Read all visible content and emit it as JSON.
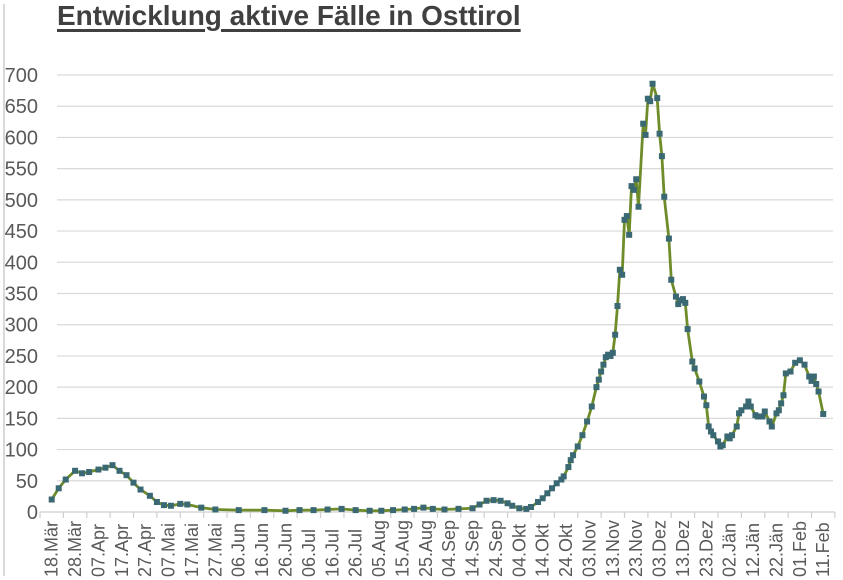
{
  "chart_data": {
    "type": "line",
    "title": "Entwicklung aktive Fälle in Osttirol",
    "subtitle": "",
    "xlabel": "",
    "ylabel": "",
    "legend": "none",
    "grid": "horizontal",
    "ylim": [
      0,
      700
    ],
    "y_ticks": [
      0,
      50,
      100,
      150,
      200,
      250,
      300,
      350,
      400,
      450,
      500,
      550,
      600,
      650,
      700
    ],
    "x_tick_labels": [
      "18.Mär",
      "28.Mär",
      "07.Apr",
      "17.Apr",
      "27.Apr",
      "07.Mai",
      "17.Mai",
      "27.Mai",
      "06.Jun",
      "16.Jun",
      "26.Jun",
      "06.Jul",
      "16.Jul",
      "26.Jul",
      "05.Aug",
      "15.Aug",
      "25.Aug",
      "04.Sep",
      "14.Sep",
      "24.Sep",
      "04.Okt",
      "14.Okt",
      "24.Okt",
      "03.Nov",
      "13.Nov",
      "23.Nov",
      "03.Dez",
      "13.Dez",
      "23.Dez",
      "02.Jän",
      "12.Jän",
      "22.Jän",
      "01.Feb",
      "11.Feb"
    ],
    "x_tick_interval_days": 10,
    "x_unit": "day offset from 18.Mär (tick labels every 10 days)",
    "series": [
      {
        "name": "aktive Fälle",
        "points": [
          [
            0,
            20
          ],
          [
            3,
            38
          ],
          [
            6,
            52
          ],
          [
            10,
            66
          ],
          [
            13,
            62
          ],
          [
            16,
            64
          ],
          [
            20,
            68
          ],
          [
            23,
            71
          ],
          [
            26,
            75
          ],
          [
            29,
            66
          ],
          [
            32,
            59
          ],
          [
            35,
            47
          ],
          [
            38,
            36
          ],
          [
            42,
            26
          ],
          [
            45,
            16
          ],
          [
            48,
            11
          ],
          [
            51,
            10
          ],
          [
            55,
            13
          ],
          [
            58,
            12
          ],
          [
            64,
            7
          ],
          [
            70,
            4
          ],
          [
            80,
            3
          ],
          [
            91,
            3
          ],
          [
            100,
            2
          ],
          [
            106,
            3
          ],
          [
            112,
            3
          ],
          [
            118,
            4
          ],
          [
            124,
            5
          ],
          [
            130,
            3
          ],
          [
            136,
            2
          ],
          [
            141,
            2
          ],
          [
            146,
            3
          ],
          [
            151,
            4
          ],
          [
            155,
            5
          ],
          [
            159,
            7
          ],
          [
            163,
            5
          ],
          [
            168,
            4
          ],
          [
            174,
            5
          ],
          [
            180,
            6
          ],
          [
            183,
            12
          ],
          [
            186,
            18
          ],
          [
            189,
            19
          ],
          [
            192,
            18
          ],
          [
            195,
            14
          ],
          [
            197,
            10
          ],
          [
            200,
            6
          ],
          [
            203,
            5
          ],
          [
            205,
            8
          ],
          [
            208,
            16
          ],
          [
            210,
            22
          ],
          [
            212,
            30
          ],
          [
            214,
            38
          ],
          [
            216,
            46
          ],
          [
            218,
            52
          ],
          [
            219,
            57
          ],
          [
            221,
            72
          ],
          [
            222,
            83
          ],
          [
            223,
            91
          ],
          [
            225,
            105
          ],
          [
            227,
            123
          ],
          [
            229,
            145
          ],
          [
            231,
            169
          ],
          [
            233,
            200
          ],
          [
            234,
            212
          ],
          [
            235,
            225
          ],
          [
            236,
            236
          ],
          [
            237,
            248
          ],
          [
            238,
            252
          ],
          [
            239,
            250
          ],
          [
            240,
            255
          ],
          [
            241,
            284
          ],
          [
            242,
            330
          ],
          [
            243,
            388
          ],
          [
            244,
            380
          ],
          [
            245,
            468
          ],
          [
            246,
            474
          ],
          [
            247,
            444
          ],
          [
            248,
            522
          ],
          [
            249,
            516
          ],
          [
            250,
            533
          ],
          [
            251,
            489
          ],
          [
            253,
            622
          ],
          [
            254,
            604
          ],
          [
            255,
            662
          ],
          [
            256,
            658
          ],
          [
            257,
            686
          ],
          [
            259,
            663
          ],
          [
            260,
            606
          ],
          [
            261,
            570
          ],
          [
            262,
            505
          ],
          [
            264,
            438
          ],
          [
            265,
            372
          ],
          [
            267,
            345
          ],
          [
            268,
            333
          ],
          [
            269,
            339
          ],
          [
            270,
            341
          ],
          [
            271,
            335
          ],
          [
            272,
            293
          ],
          [
            274,
            241
          ],
          [
            275,
            230
          ],
          [
            277,
            209
          ],
          [
            279,
            185
          ],
          [
            280,
            171
          ],
          [
            281,
            137
          ],
          [
            282,
            129
          ],
          [
            283,
            123
          ],
          [
            285,
            113
          ],
          [
            286,
            105
          ],
          [
            287,
            107
          ],
          [
            289,
            121
          ],
          [
            290,
            118
          ],
          [
            291,
            123
          ],
          [
            293,
            137
          ],
          [
            294,
            158
          ],
          [
            295,
            163
          ],
          [
            297,
            169
          ],
          [
            298,
            177
          ],
          [
            299,
            169
          ],
          [
            301,
            155
          ],
          [
            302,
            153
          ],
          [
            304,
            153
          ],
          [
            305,
            161
          ],
          [
            307,
            145
          ],
          [
            308,
            137
          ],
          [
            310,
            158
          ],
          [
            311,
            163
          ],
          [
            312,
            174
          ],
          [
            313,
            187
          ],
          [
            314,
            222
          ],
          [
            316,
            225
          ],
          [
            318,
            239
          ],
          [
            320,
            243
          ],
          [
            322,
            236
          ],
          [
            324,
            217
          ],
          [
            325,
            210
          ],
          [
            326,
            217
          ],
          [
            327,
            205
          ],
          [
            328,
            193
          ],
          [
            330,
            157
          ]
        ]
      }
    ],
    "colors": {
      "line": "#6f8c2a",
      "marker": "#3a6873",
      "gridline": "#d9d9d9",
      "axis_line": "#cfcfcf",
      "tick_label": "#595959",
      "title": "#404040",
      "background": "#ffffff"
    }
  }
}
